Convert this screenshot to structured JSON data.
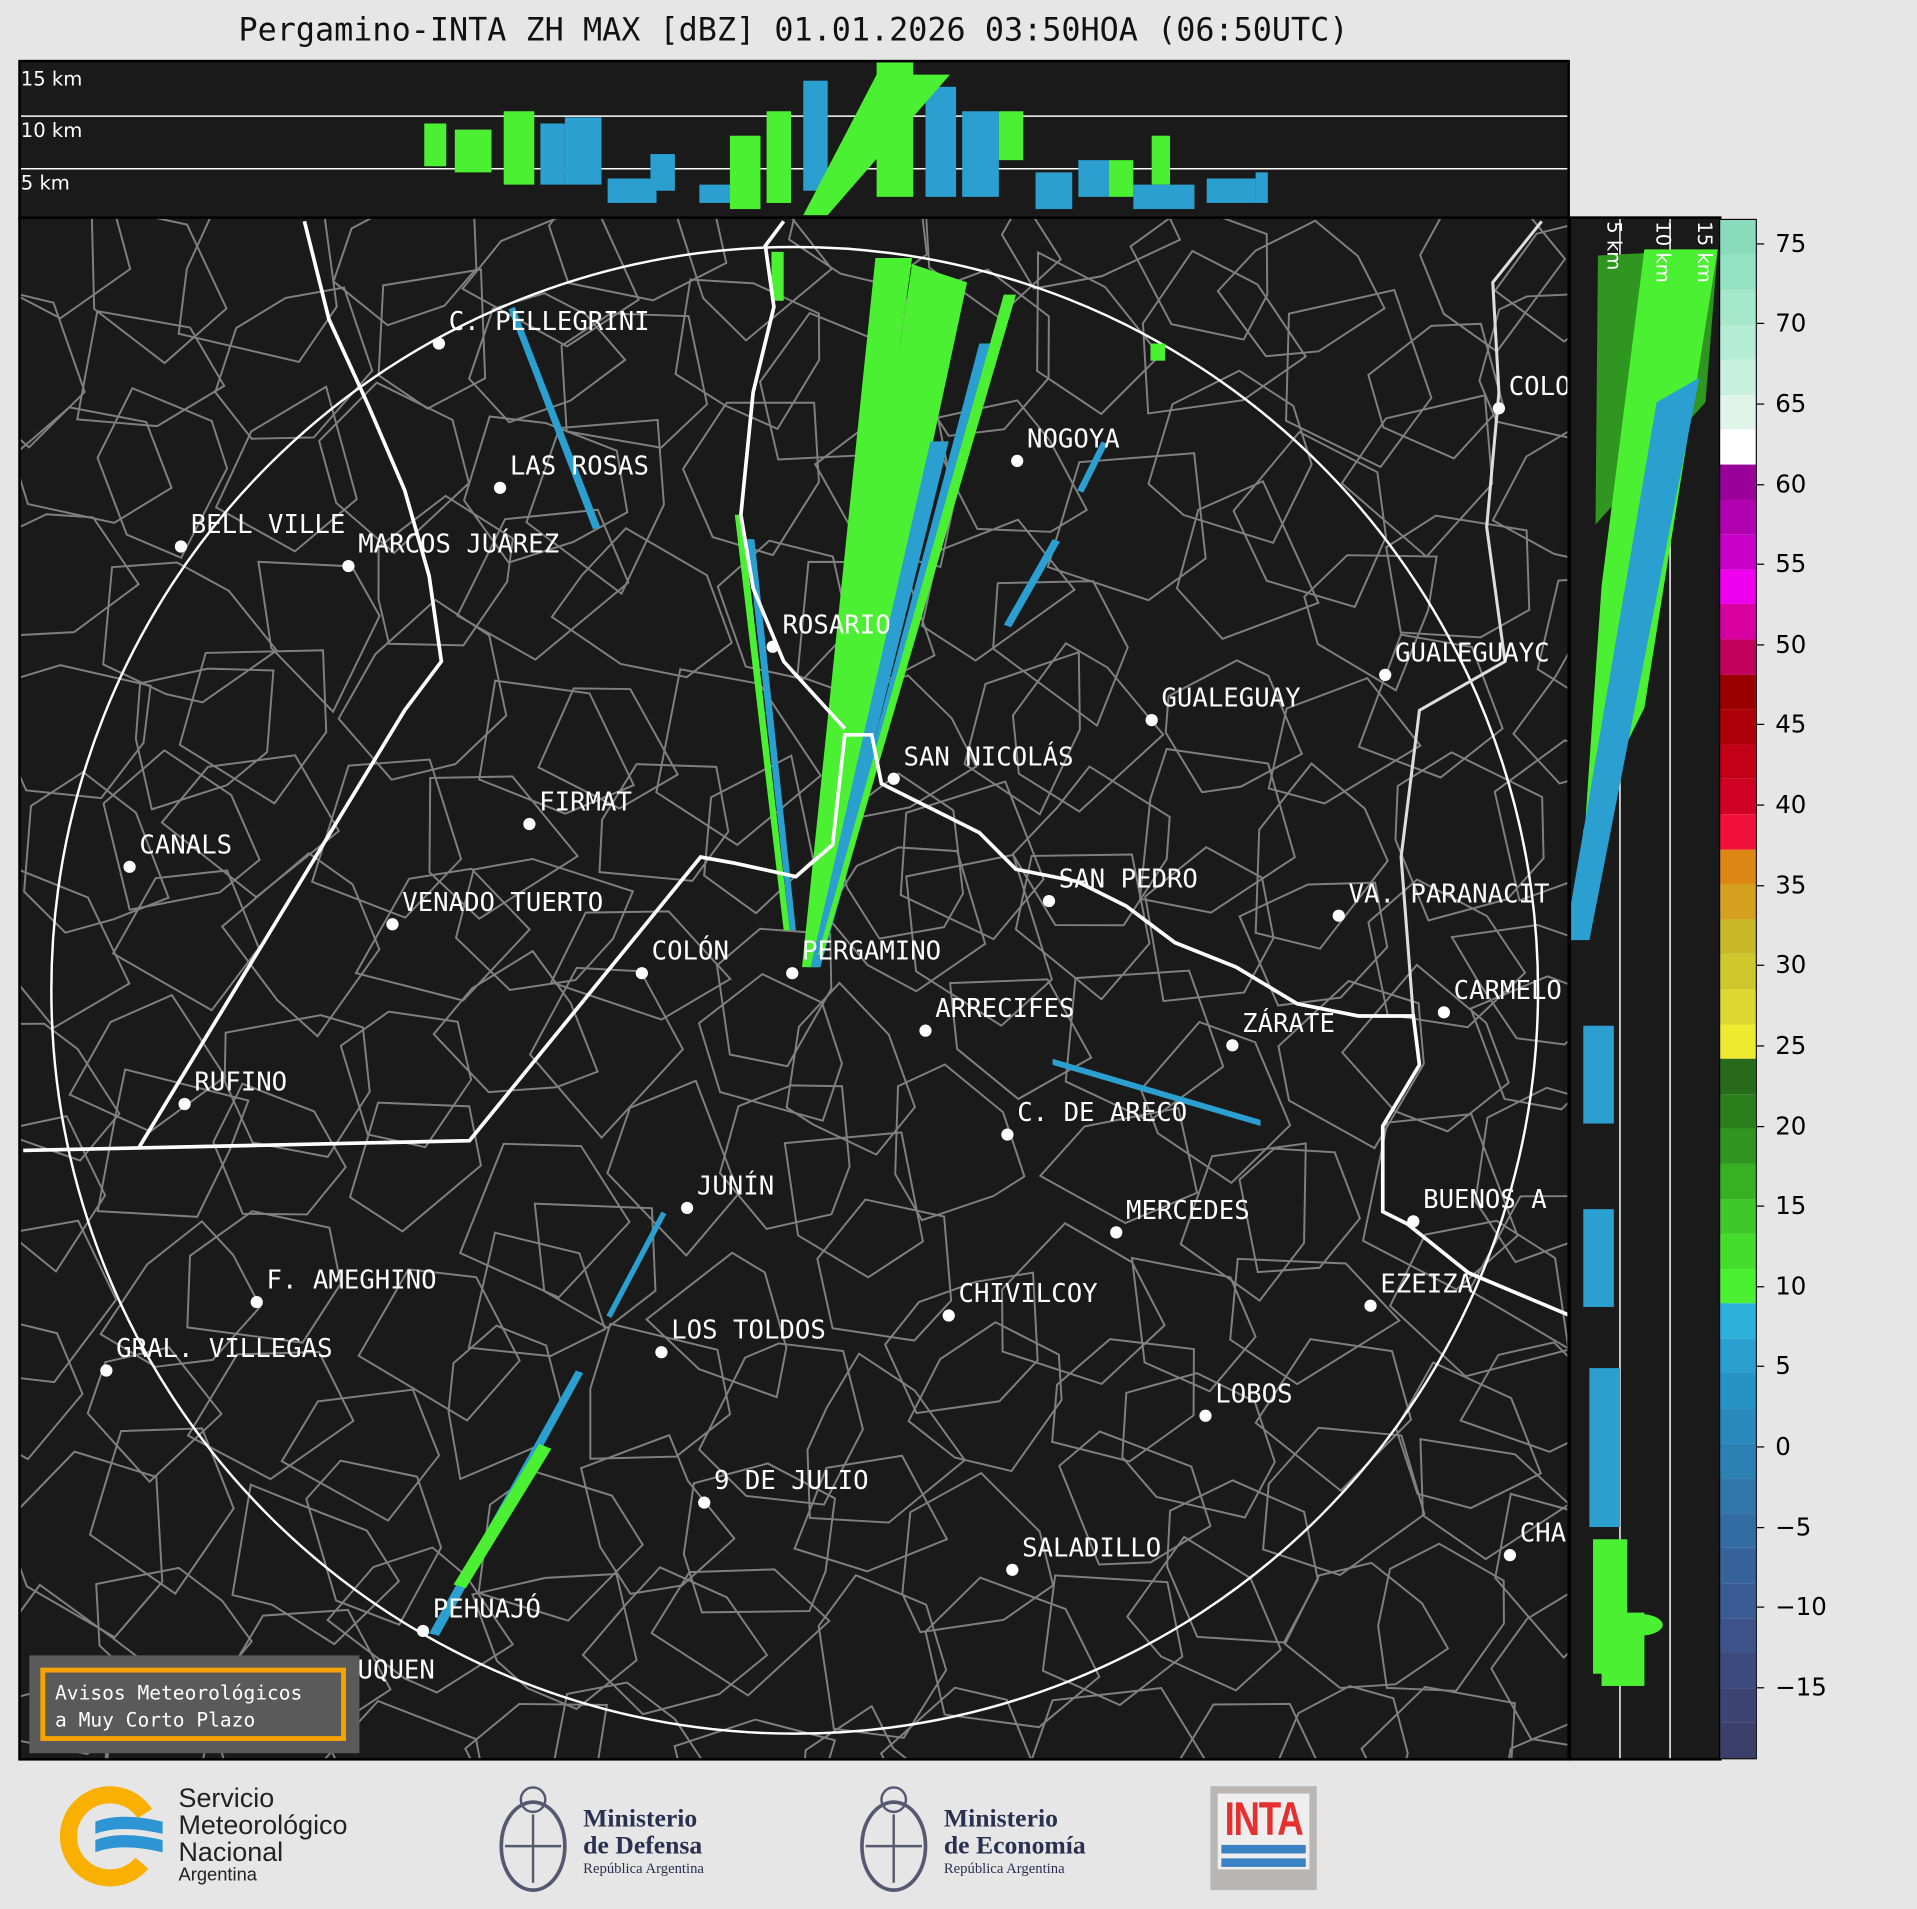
{
  "title": "Pergamino-INTA ZH MAX [dBZ] 01.01.2026 03:50HOA (06:50UTC)",
  "top_panel": {
    "height_labels": [
      "15 km",
      "10 km",
      "5 km"
    ]
  },
  "side_panel": {
    "height_labels": [
      "5 km",
      "10 km",
      "15 km"
    ]
  },
  "colorbar": {
    "unit": "dBZ",
    "ticks": [
      "75",
      "70",
      "65",
      "60",
      "55",
      "50",
      "45",
      "40",
      "35",
      "30",
      "25",
      "20",
      "15",
      "10",
      "5",
      "0",
      "−5",
      "−10",
      "−15"
    ],
    "min": -19.5,
    "max": 76.5,
    "colors": [
      "#3b3f6a",
      "#3c4474",
      "#3d4a7e",
      "#3c5288",
      "#3a5a92",
      "#37639b",
      "#336ca3",
      "#2f76ab",
      "#2b80b4",
      "#2889bd",
      "#2693c6",
      "#2a9fd0",
      "#2cb0dc",
      "#4cf032",
      "#46dc2e",
      "#3ec829",
      "#37b024",
      "#2f961f",
      "#2a7e1c",
      "#276a1a",
      "#eeea30",
      "#dcd830",
      "#cec82c",
      "#c8b828",
      "#d4a01e",
      "#dc8614",
      "#f0103a",
      "#d00024",
      "#c20018",
      "#ae0008",
      "#9a0000",
      "#c0005a",
      "#d800a0",
      "#ee00ee",
      "#c800c8",
      "#b000b0",
      "#9a009a",
      "#ffffff",
      "#dff5ea",
      "#c8f0df",
      "#b5ecd5",
      "#a5e8cc",
      "#92e2c3",
      "#88dcbc"
    ]
  },
  "cities": [
    "C. PELLEGRINI",
    "LAS ROSAS",
    "BELL VILLE",
    "MARCOS JUÁREZ",
    "NOGOYA",
    "ROSARIO",
    "GUALEGUAY",
    "GUALEGUAYC",
    "COLO",
    "SAN NICOLÁS",
    "FIRMAT",
    "CANALS",
    "SAN PEDRO",
    "VA. PARANACIT",
    "VENADO TUERTO",
    "COLÓN",
    "PERGAMINO",
    "CARMELO",
    "ARRECIFES",
    "ZÁRATE",
    "RUFINO",
    "C. DE ARECO",
    "JUNÍN",
    "MERCEDES",
    "BUENOS A",
    "F. AMEGHINO",
    "CHIVILCOY",
    "EZEIZA",
    "GRAL. VILLEGAS",
    "LOS TOLDOS",
    "LOBOS",
    "9 DE JULIO",
    "SALADILLO",
    "CHA",
    "PEHUAJÓ",
    "TRENQUE LAUQUEN"
  ],
  "avisos": {
    "line1": "Avisos Meteorológicos",
    "line2": "a Muy Corto Plazo"
  },
  "logos": {
    "smn": [
      "Servicio",
      "Meteorológico",
      "Nacional",
      "Argentina"
    ],
    "defensa": [
      "Ministerio",
      "de Defensa",
      "República Argentina"
    ],
    "economia": [
      "Ministerio",
      "de Economía",
      "República Argentina"
    ],
    "inta": "INTA"
  },
  "colors": {
    "background": "#1a1a1a",
    "echo_green": "#4cf032",
    "echo_blue": "#2a9fd0",
    "accent_orange": "#f5a300"
  }
}
